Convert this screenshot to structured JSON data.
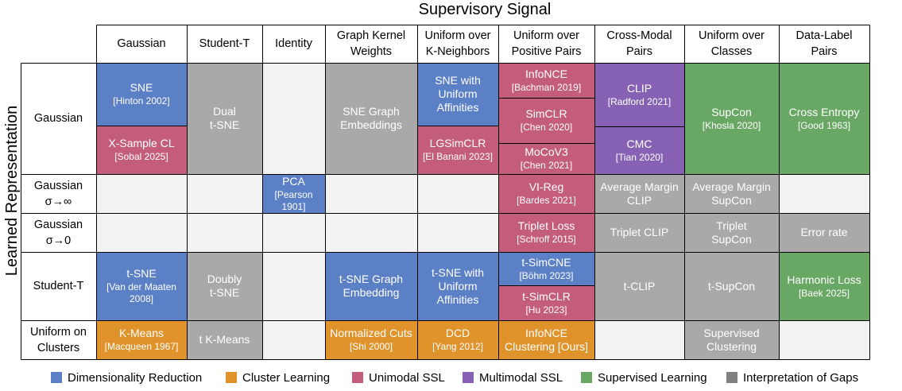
{
  "title": "Supervisory Signal",
  "ylabel": "Learned Representation",
  "colors": {
    "dimred": "#5b80c5",
    "cluster": "#e0932b",
    "unimodal": "#c45d7c",
    "multimodal": "#8762b4",
    "supervised": "#69a864",
    "gaps": "#a9a9a9",
    "empty": "#f2f2f2"
  },
  "columns": [
    {
      "line1": "Gaussian",
      "line2": ""
    },
    {
      "line1": "Student-T",
      "line2": ""
    },
    {
      "line1": "Identity",
      "line2": ""
    },
    {
      "line1": "Graph Kernel",
      "line2": "Weights"
    },
    {
      "line1": "Uniform over",
      "line2": "K-Neighbors"
    },
    {
      "line1": "Uniform over",
      "line2": "Positive Pairs"
    },
    {
      "line1": "Cross-Modal",
      "line2": "Pairs"
    },
    {
      "line1": "Uniform over",
      "line2": "Classes"
    },
    {
      "line1": "Data-Label",
      "line2": "Pairs"
    }
  ],
  "rows": [
    {
      "line1": "Gaussian",
      "line2": ""
    },
    {
      "line1": "Gaussian",
      "line2": "σ→∞"
    },
    {
      "line1": "Gaussian",
      "line2": "σ→0"
    },
    {
      "line1": "Student-T",
      "line2": ""
    },
    {
      "line1": "Uniform on",
      "line2": "Clusters"
    }
  ],
  "cells": [
    {
      "main": "SNE",
      "cite": "[Hinton 2002]",
      "category": "dimred"
    },
    {
      "main": "X-Sample CL",
      "cite": "[Sobal 2025]",
      "category": "unimodal"
    },
    {
      "main": "Dual\nt-SNE",
      "cite": "",
      "category": "gaps"
    },
    {
      "main": "SNE Graph\nEmbeddings",
      "cite": "",
      "category": "gaps"
    },
    {
      "main": "SNE with\nUniform\nAffinities",
      "cite": "",
      "category": "dimred"
    },
    {
      "main": "LGSimCLR",
      "cite": "[El Banani 2023]",
      "category": "unimodal"
    },
    {
      "main": "InfoNCE",
      "cite": "[Bachman 2019]",
      "category": "unimodal"
    },
    {
      "main": "SimCLR",
      "cite": "[Chen 2020]",
      "category": "unimodal"
    },
    {
      "main": "MoCoV3",
      "cite": "[Chen 2021]",
      "category": "unimodal"
    },
    {
      "main": "CLIP",
      "cite": "[Radford 2021]",
      "category": "multimodal"
    },
    {
      "main": "CMC",
      "cite": "[Tian 2020]",
      "category": "multimodal"
    },
    {
      "main": "SupCon",
      "cite": "[Khosla 2020]",
      "category": "supervised"
    },
    {
      "main": "Cross Entropy",
      "cite": "[Good 1963]",
      "category": "supervised"
    },
    {
      "main": "PCA",
      "cite": "[Pearson 1901]",
      "category": "dimred"
    },
    {
      "main": "VI-Reg",
      "cite": "[Bardes 2021]",
      "category": "unimodal"
    },
    {
      "main": "Average Margin\nCLIP",
      "cite": "",
      "category": "gaps"
    },
    {
      "main": "Average Margin\nSupCon",
      "cite": "",
      "category": "gaps"
    },
    {
      "main": "Triplet Loss",
      "cite": "[Schroff  2015]",
      "category": "unimodal"
    },
    {
      "main": "Triplet CLIP",
      "cite": "",
      "category": "gaps"
    },
    {
      "main": "Triplet\nSupCon",
      "cite": "",
      "category": "gaps"
    },
    {
      "main": "Error rate",
      "cite": "",
      "category": "gaps"
    },
    {
      "main": "t-SNE",
      "cite": "[Van der Maaten\n2008]",
      "category": "dimred"
    },
    {
      "main": "Doubly\nt-SNE",
      "cite": "",
      "category": "gaps"
    },
    {
      "main": "t-SNE Graph\nEmbedding",
      "cite": "",
      "category": "dimred"
    },
    {
      "main": "t-SNE with\nUniform\nAffinities",
      "cite": "",
      "category": "dimred"
    },
    {
      "main": "t-SimCNE",
      "cite": "[Böhm 2023]",
      "category": "dimred"
    },
    {
      "main": "t-SimCLR",
      "cite": "[Hu 2023]",
      "category": "unimodal"
    },
    {
      "main": "t-CLIP",
      "cite": "",
      "category": "gaps"
    },
    {
      "main": "t-SupCon",
      "cite": "",
      "category": "gaps"
    },
    {
      "main": "Harmonic Loss",
      "cite": "[Baek 2025]",
      "category": "supervised"
    },
    {
      "main": "K-Means",
      "cite": "[Macqueen 1967]",
      "category": "cluster"
    },
    {
      "main": "t K-Means",
      "cite": "",
      "category": "gaps"
    },
    {
      "main": "Normalized Cuts",
      "cite": "[Shi 2000]",
      "category": "cluster"
    },
    {
      "main": "DCD",
      "cite": "[Yang 2012]",
      "category": "cluster"
    },
    {
      "main": "InfoNCE\nClustering [Ours]",
      "cite": "",
      "category": "cluster"
    },
    {
      "main": "Supervised\nClustering",
      "cite": "",
      "category": "gaps"
    }
  ],
  "legend": [
    {
      "label": "Dimensionality Reduction",
      "category": "dimred"
    },
    {
      "label": "Cluster Learning",
      "category": "cluster"
    },
    {
      "label": "Unimodal SSL",
      "category": "unimodal"
    },
    {
      "label": "Multimodal SSL",
      "category": "multimodal"
    },
    {
      "label": "Supervised Learning",
      "category": "supervised"
    },
    {
      "label": "Interpretation of Gaps",
      "category": "gaps"
    }
  ],
  "legend_swatch_colors": {
    "gaps": "#808080"
  }
}
